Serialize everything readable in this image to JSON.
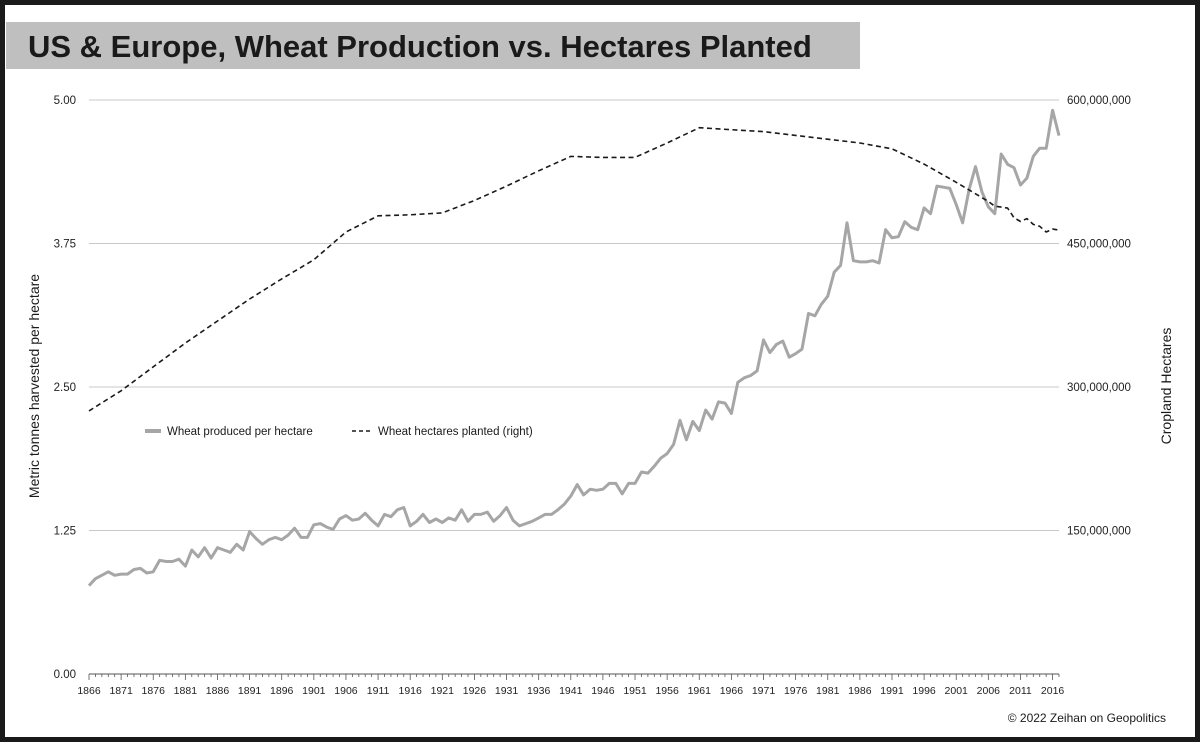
{
  "chart_data": {
    "type": "line",
    "title": "US & Europe, Wheat Production vs. Hectares Planted",
    "ylabel": "Metric tonnes harvested per hectare",
    "y2label": "Cropland Hectares",
    "ylim": [
      0,
      5
    ],
    "y2lim": [
      0,
      600000000
    ],
    "xlim": [
      1866,
      2017
    ],
    "y_ticks": [
      "0.00",
      "1.25",
      "2.50",
      "3.75",
      "5.00"
    ],
    "y2_ticks": [
      "150,000,000",
      "300,000,000",
      "450,000,000",
      "600,000,000"
    ],
    "x_ticks": [
      "1866",
      "1871",
      "1876",
      "1881",
      "1886",
      "1891",
      "1896",
      "1901",
      "1906",
      "1911",
      "1916",
      "1921",
      "1926",
      "1931",
      "1936",
      "1941",
      "1946",
      "1951",
      "1956",
      "1961",
      "1966",
      "1971",
      "1976",
      "1981",
      "1986",
      "1991",
      "1996",
      "2001",
      "2006",
      "2011",
      "2016"
    ],
    "grid": true,
    "legend_position": "middle-left",
    "colors": {
      "yield": "#a6a6a6",
      "hectares": "#1a1a1a",
      "title_bg": "#bfbfbf",
      "grid": "#c8c8c8"
    },
    "series": [
      {
        "name": "Wheat produced per hectare",
        "axis": "left",
        "style": "solid",
        "x": [
          1866,
          1867,
          1868,
          1869,
          1870,
          1871,
          1872,
          1873,
          1874,
          1875,
          1876,
          1877,
          1878,
          1879,
          1880,
          1881,
          1882,
          1883,
          1884,
          1885,
          1886,
          1887,
          1888,
          1889,
          1890,
          1891,
          1892,
          1893,
          1894,
          1895,
          1896,
          1897,
          1898,
          1899,
          1900,
          1901,
          1902,
          1903,
          1904,
          1905,
          1906,
          1907,
          1908,
          1909,
          1910,
          1911,
          1912,
          1913,
          1914,
          1915,
          1916,
          1917,
          1918,
          1919,
          1920,
          1921,
          1922,
          1923,
          1924,
          1925,
          1926,
          1927,
          1928,
          1929,
          1930,
          1931,
          1932,
          1933,
          1934,
          1935,
          1936,
          1937,
          1938,
          1939,
          1940,
          1941,
          1942,
          1943,
          1944,
          1945,
          1946,
          1947,
          1948,
          1949,
          1950,
          1951,
          1952,
          1953,
          1954,
          1955,
          1956,
          1957,
          1958,
          1959,
          1960,
          1961,
          1962,
          1963,
          1964,
          1965,
          1966,
          1967,
          1968,
          1969,
          1970,
          1971,
          1972,
          1973,
          1974,
          1975,
          1976,
          1977,
          1978,
          1979,
          1980,
          1981,
          1982,
          1983,
          1984,
          1985,
          1986,
          1987,
          1988,
          1989,
          1990,
          1991,
          1992,
          1993,
          1994,
          1995,
          1996,
          1997,
          1998,
          1999,
          2000,
          2001,
          2002,
          2003,
          2004,
          2005,
          2006,
          2007,
          2008,
          2009,
          2010,
          2011,
          2012,
          2013,
          2014,
          2015,
          2016,
          2017
        ],
        "values": [
          0.77,
          0.83,
          0.86,
          0.89,
          0.86,
          0.87,
          0.87,
          0.91,
          0.92,
          0.88,
          0.89,
          0.99,
          0.98,
          0.98,
          1.0,
          0.94,
          1.08,
          1.02,
          1.1,
          1.01,
          1.1,
          1.08,
          1.06,
          1.13,
          1.08,
          1.24,
          1.18,
          1.13,
          1.17,
          1.19,
          1.17,
          1.21,
          1.27,
          1.19,
          1.19,
          1.3,
          1.31,
          1.28,
          1.26,
          1.35,
          1.38,
          1.34,
          1.35,
          1.4,
          1.34,
          1.29,
          1.39,
          1.37,
          1.43,
          1.45,
          1.29,
          1.33,
          1.39,
          1.32,
          1.35,
          1.32,
          1.36,
          1.34,
          1.43,
          1.33,
          1.39,
          1.39,
          1.41,
          1.33,
          1.38,
          1.45,
          1.34,
          1.29,
          1.31,
          1.33,
          1.36,
          1.39,
          1.39,
          1.43,
          1.48,
          1.55,
          1.65,
          1.56,
          1.61,
          1.6,
          1.61,
          1.66,
          1.66,
          1.57,
          1.66,
          1.66,
          1.76,
          1.75,
          1.81,
          1.88,
          1.92,
          2.0,
          2.21,
          2.04,
          2.2,
          2.12,
          2.3,
          2.22,
          2.37,
          2.36,
          2.27,
          2.54,
          2.58,
          2.6,
          2.64,
          2.91,
          2.8,
          2.87,
          2.9,
          2.76,
          2.79,
          2.83,
          3.14,
          3.12,
          3.22,
          3.29,
          3.5,
          3.56,
          3.93,
          3.6,
          3.59,
          3.59,
          3.6,
          3.58,
          3.87,
          3.8,
          3.81,
          3.94,
          3.89,
          3.87,
          4.06,
          4.01,
          4.25,
          4.24,
          4.23,
          4.09,
          3.93,
          4.22,
          4.42,
          4.2,
          4.07,
          4.01,
          4.53,
          4.44,
          4.41,
          4.26,
          4.32,
          4.51,
          4.58,
          4.58,
          4.91,
          4.69
        ]
      },
      {
        "name": "Wheat hectares planted (right)",
        "axis": "right",
        "style": "dashed",
        "x": [
          1866,
          1871,
          1876,
          1881,
          1886,
          1891,
          1896,
          1901,
          1906,
          1911,
          1916,
          1921,
          1926,
          1931,
          1936,
          1941,
          1946,
          1951,
          1956,
          1961,
          1966,
          1971,
          1976,
          1981,
          1986,
          1991,
          1996,
          2001,
          2006,
          2007,
          2008,
          2009,
          2010,
          2011,
          2012,
          2013,
          2014,
          2015,
          2016,
          2017
        ],
        "values": [
          275000000,
          296000000,
          321000000,
          346000000,
          369000000,
          392000000,
          413000000,
          433000000,
          462000000,
          479000000,
          480000000,
          482000000,
          495000000,
          510000000,
          526000000,
          541000000,
          540000000,
          540000000,
          555000000,
          571000000,
          569000000,
          567000000,
          563000000,
          559000000,
          555000000,
          549000000,
          533000000,
          514000000,
          494000000,
          489000000,
          488000000,
          487000000,
          477000000,
          473000000,
          476000000,
          470000000,
          468000000,
          462000000,
          465000000,
          464000000
        ]
      }
    ],
    "legend": [
      {
        "label": "Wheat produced per hectare"
      },
      {
        "label": "Wheat hectares planted (right)"
      }
    ],
    "copyright": "© 2022 Zeihan on Geopolitics"
  }
}
